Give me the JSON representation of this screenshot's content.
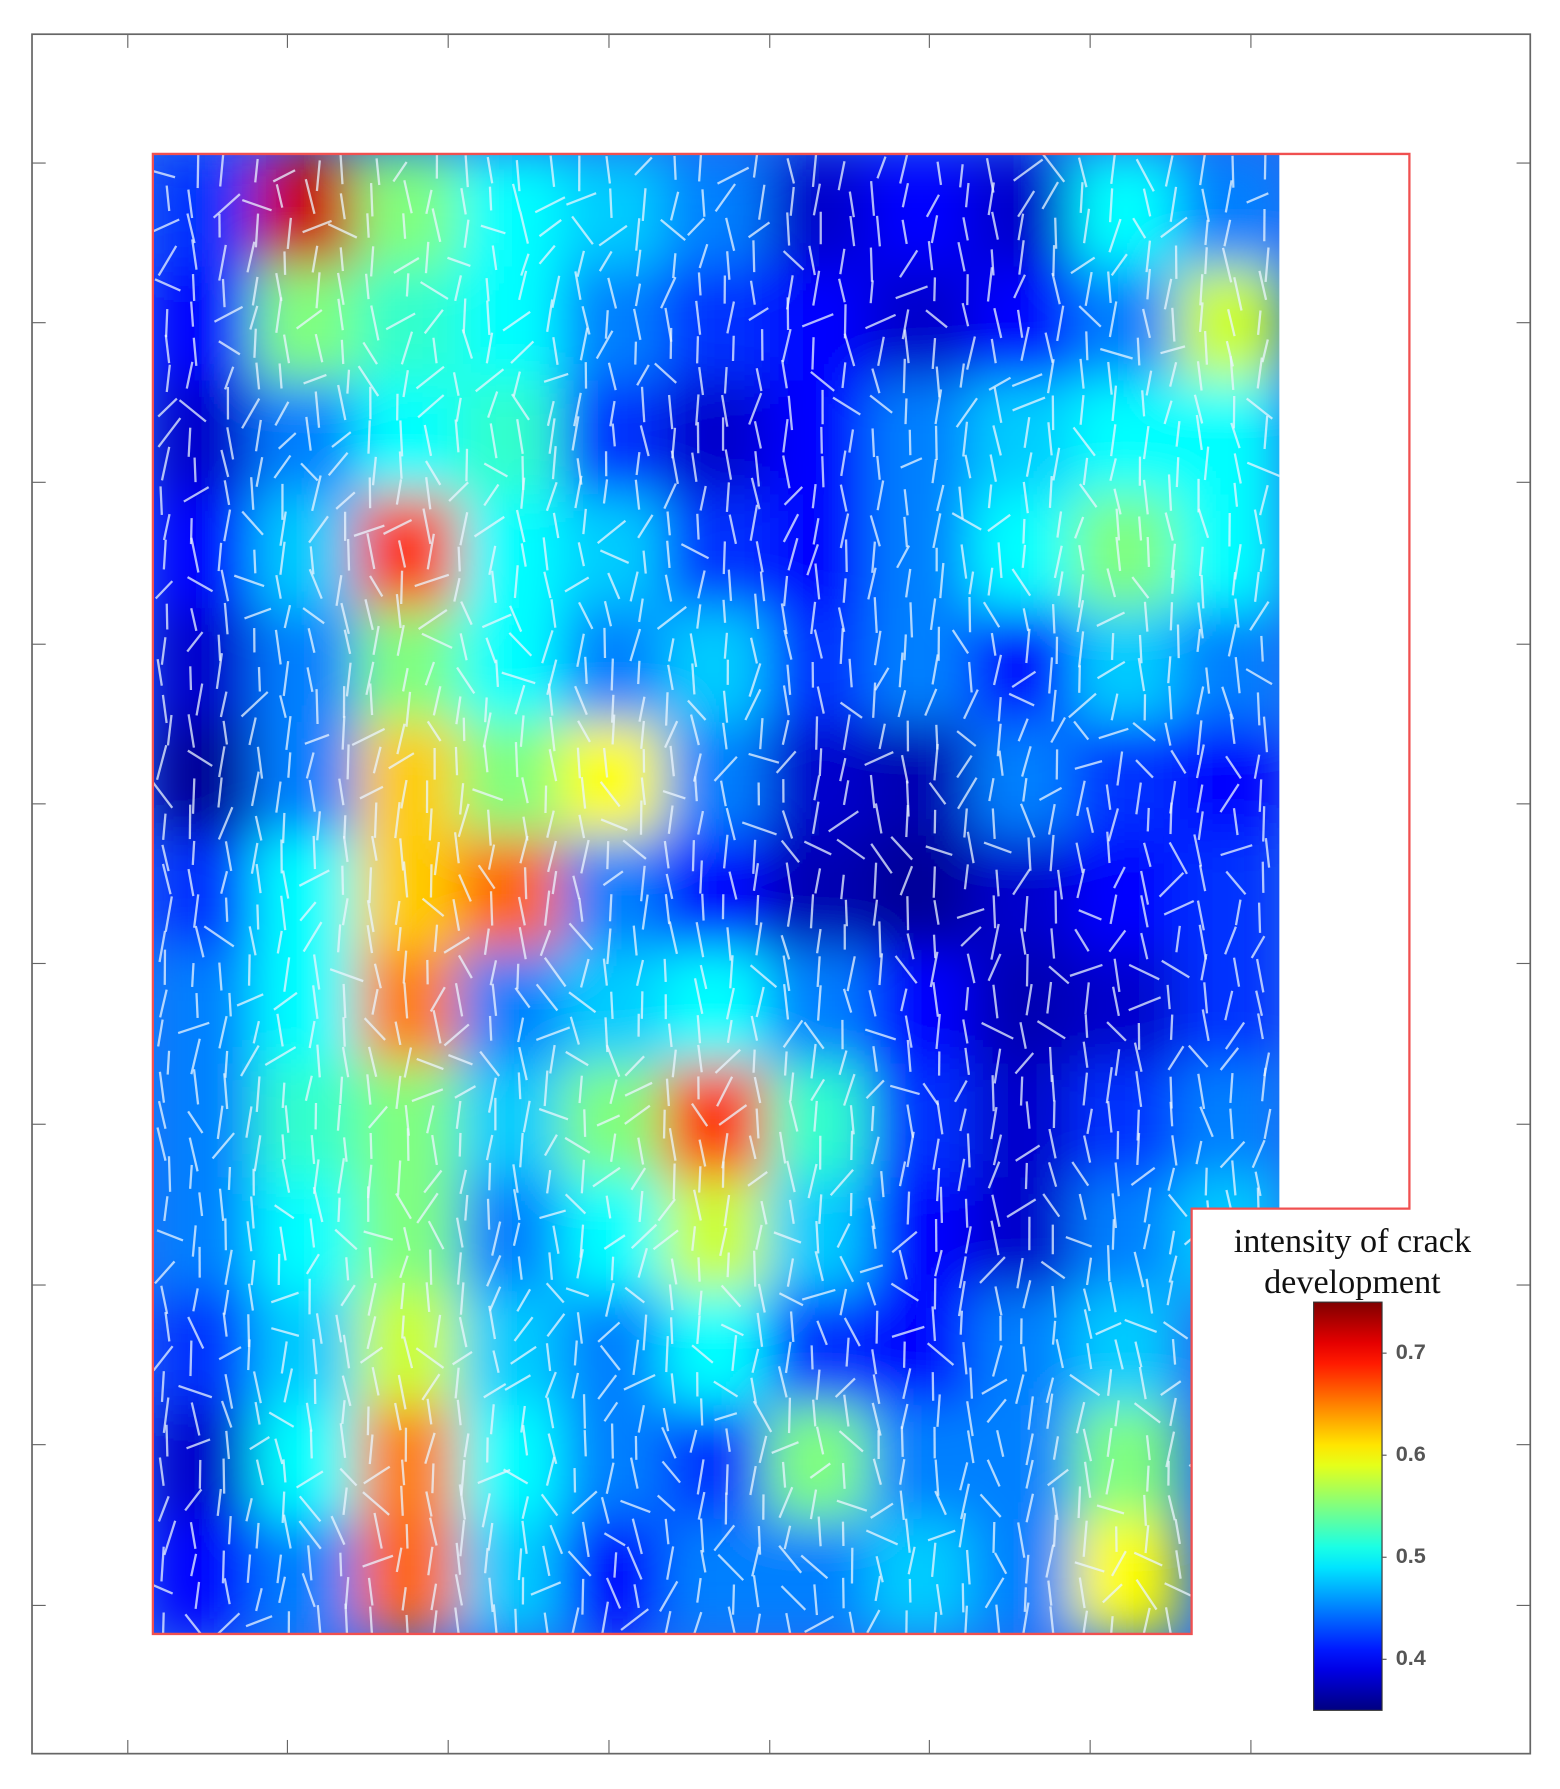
{
  "chart_data": {
    "type": "heatmap",
    "colorbar_title": [
      "intensity of crack",
      "development"
    ],
    "colormap": "jet",
    "clim": [
      0.35,
      0.75
    ],
    "cticks": [
      0.4,
      0.5,
      0.6,
      0.7
    ],
    "values": [
      [
        0.42,
        0.72,
        0.55,
        0.5,
        0.48,
        0.45,
        0.38,
        0.4,
        0.38,
        0.5,
        0.45
      ],
      [
        0.4,
        0.55,
        0.52,
        0.5,
        0.45,
        0.42,
        0.4,
        0.38,
        0.4,
        0.45,
        0.58
      ],
      [
        0.38,
        0.45,
        0.5,
        0.52,
        0.42,
        0.38,
        0.4,
        0.45,
        0.48,
        0.5,
        0.5
      ],
      [
        0.4,
        0.48,
        0.68,
        0.5,
        0.48,
        0.42,
        0.4,
        0.45,
        0.5,
        0.55,
        0.5
      ],
      [
        0.38,
        0.45,
        0.55,
        0.5,
        0.45,
        0.48,
        0.42,
        0.45,
        0.4,
        0.48,
        0.45
      ],
      [
        0.36,
        0.45,
        0.62,
        0.55,
        0.6,
        0.45,
        0.38,
        0.37,
        0.45,
        0.42,
        0.4
      ],
      [
        0.42,
        0.5,
        0.62,
        0.66,
        0.45,
        0.4,
        0.37,
        0.36,
        0.38,
        0.4,
        0.42
      ],
      [
        0.45,
        0.5,
        0.65,
        0.45,
        0.48,
        0.5,
        0.45,
        0.4,
        0.37,
        0.38,
        0.42
      ],
      [
        0.45,
        0.52,
        0.55,
        0.48,
        0.55,
        0.68,
        0.52,
        0.42,
        0.38,
        0.42,
        0.45
      ],
      [
        0.45,
        0.5,
        0.55,
        0.45,
        0.5,
        0.58,
        0.48,
        0.4,
        0.38,
        0.45,
        0.48
      ],
      [
        0.42,
        0.48,
        0.58,
        0.48,
        0.45,
        0.5,
        0.42,
        0.4,
        0.45,
        0.48,
        null
      ],
      [
        0.38,
        0.5,
        0.65,
        0.5,
        0.45,
        0.42,
        0.55,
        0.45,
        0.45,
        0.55,
        null
      ],
      [
        0.4,
        0.45,
        0.66,
        0.48,
        0.4,
        0.45,
        0.45,
        0.48,
        0.45,
        0.6,
        null
      ]
    ]
  }
}
